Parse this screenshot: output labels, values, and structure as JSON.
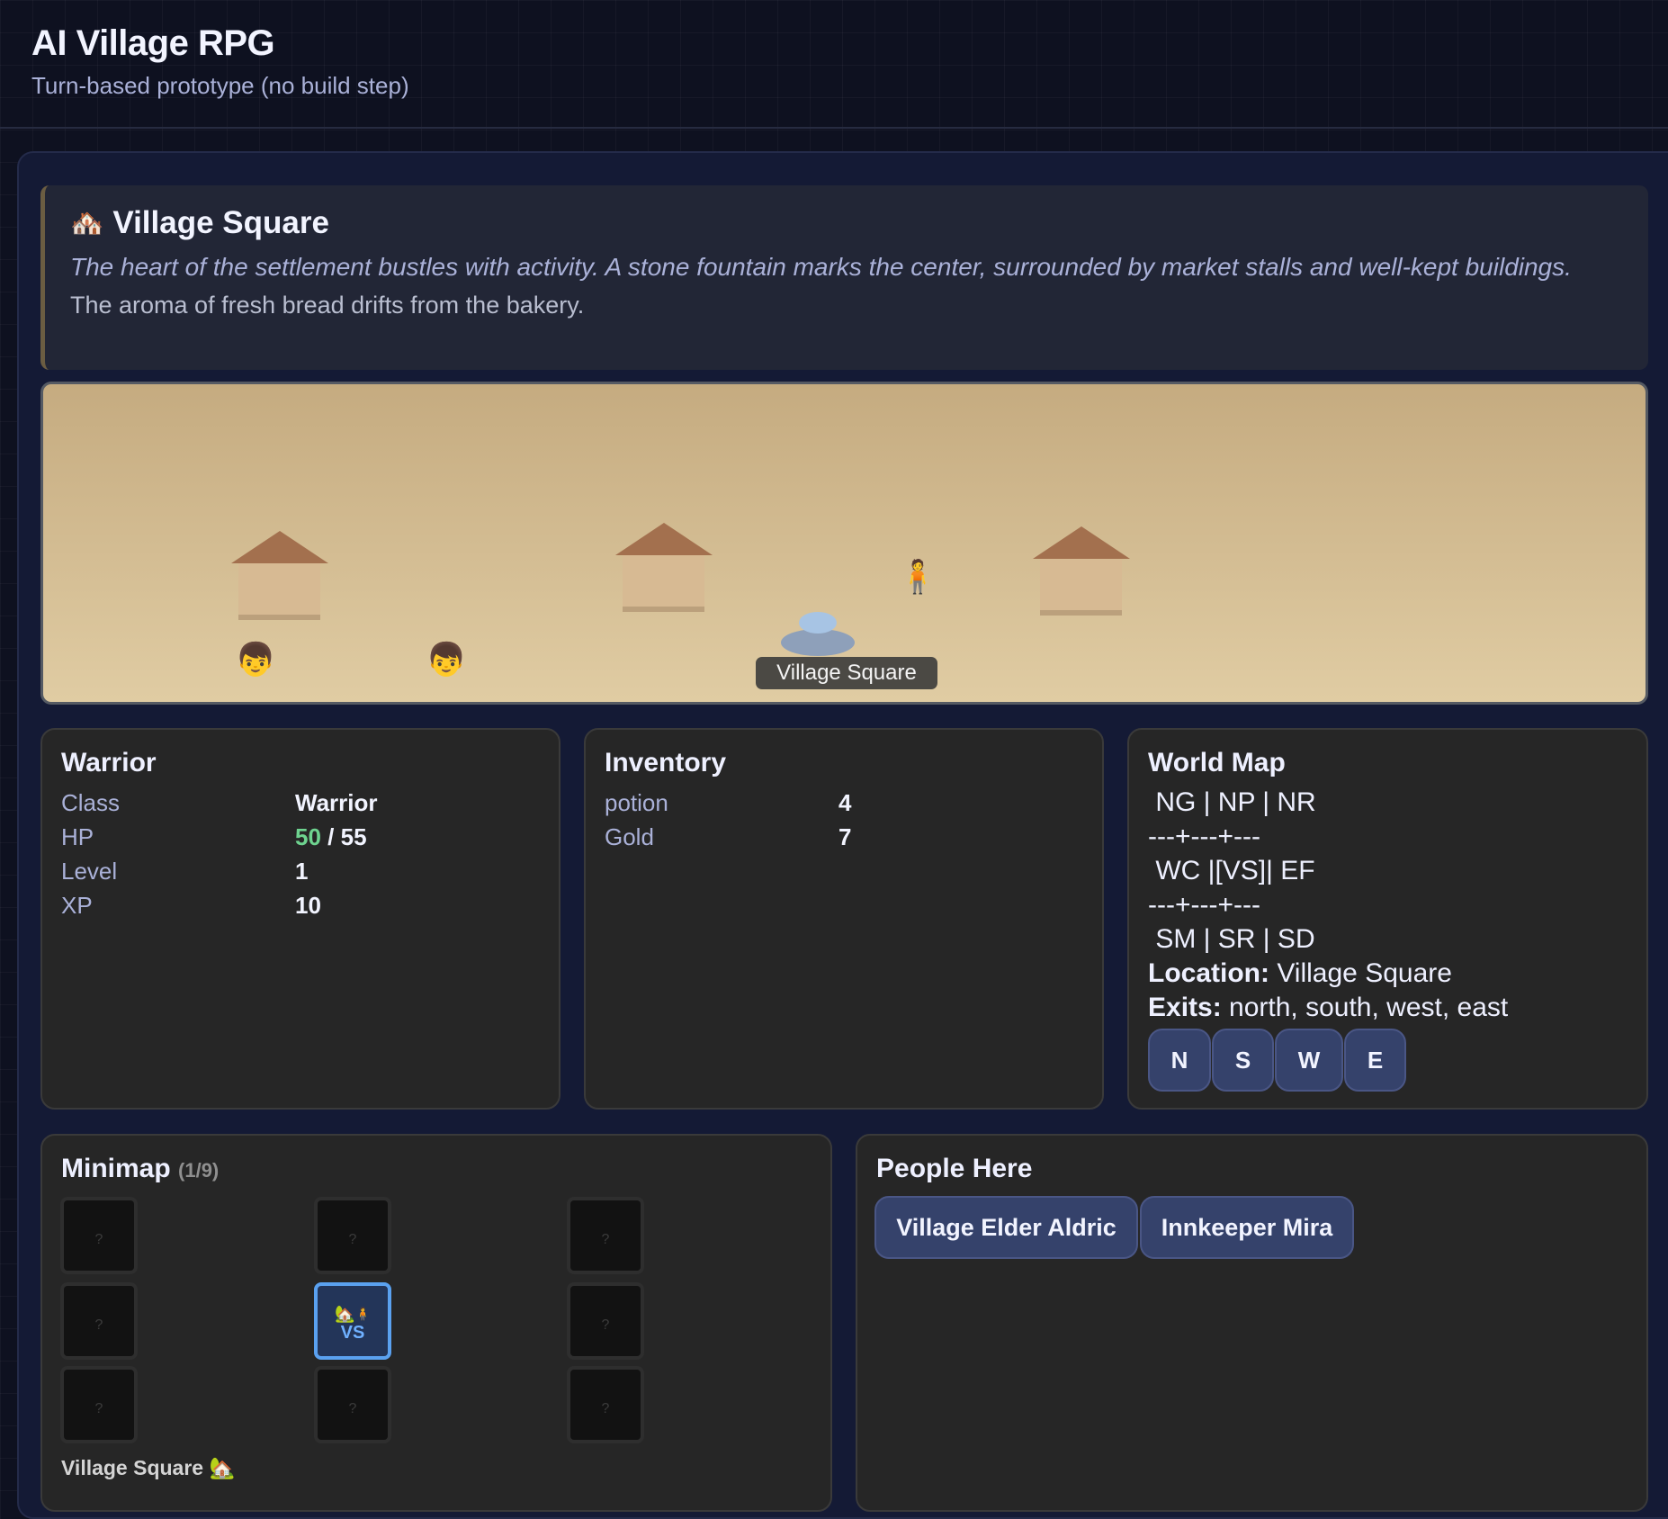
{
  "header": {
    "title": "AI Village RPG",
    "subtitle": "Turn-based prototype (no build step)"
  },
  "location": {
    "icon": "🏘️",
    "name": "Village Square",
    "description": "The heart of the settlement bustles with activity. A stone fountain marks the center, surrounded by market stalls and well-kept buildings.",
    "ambient": "The aroma of fresh bread drifts from the bakery."
  },
  "scene": {
    "label": "Village Square",
    "player_icon": "🧍",
    "npc_icon": "👦",
    "colors": {
      "sky": "#c5ab80",
      "ground": "#e0cca3",
      "roof": "#a3704e",
      "wall": "#d7ba93",
      "fountain": "#8ea0ba"
    }
  },
  "character": {
    "title": "Warrior",
    "rows": [
      {
        "label": "Class",
        "value": "Warrior"
      },
      {
        "label": "HP",
        "hp_current": "50",
        "hp_max": "/ 55"
      },
      {
        "label": "Level",
        "value": "1"
      },
      {
        "label": "XP",
        "value": "10"
      }
    ]
  },
  "inventory": {
    "title": "Inventory",
    "items": [
      {
        "name": "potion",
        "qty": "4"
      },
      {
        "name": "Gold",
        "qty": "7"
      }
    ]
  },
  "world_map": {
    "title": "World Map",
    "ascii": [
      " NG | NP | NR",
      "---+---+---",
      " WC |[VS]| EF",
      "---+---+---",
      " SM | SR | SD"
    ],
    "location_label": "Location:",
    "location": "Village Square",
    "exits_label": "Exits:",
    "exits": "north, south, west, east",
    "buttons": [
      "N",
      "S",
      "W",
      "E"
    ]
  },
  "minimap": {
    "title": "Minimap",
    "count": "(1/9)",
    "unknown": "?",
    "current_code": "VS",
    "current_icon": "🏡",
    "player_icon": "🧍",
    "caption": "Village Square 🏡"
  },
  "people": {
    "title": "People Here",
    "npcs": [
      "Village Elder Aldric",
      "Innkeeper Mira"
    ]
  }
}
